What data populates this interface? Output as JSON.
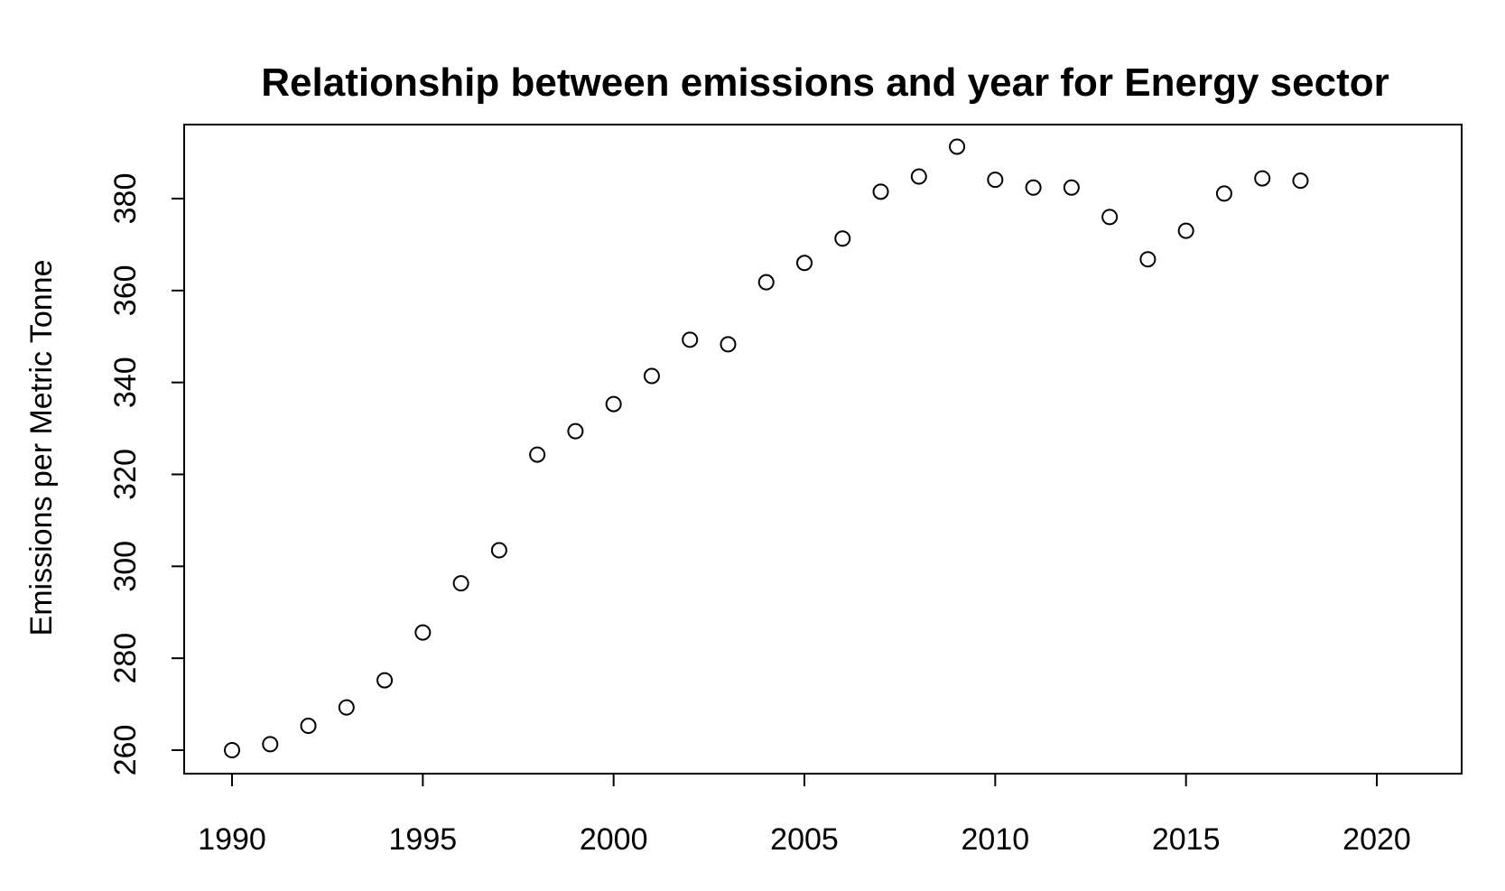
{
  "chart_data": {
    "type": "scatter",
    "title": "Relationship between emissions and year for Energy sector",
    "xlabel": "",
    "ylabel": "Emissions per Metric Tonne",
    "xlim": [
      1989,
      2022.5
    ],
    "ylim": [
      255,
      397
    ],
    "x_ticks": [
      1990,
      1995,
      2000,
      2005,
      2010,
      2015,
      2020
    ],
    "y_ticks": [
      260,
      280,
      300,
      320,
      340,
      360,
      380
    ],
    "grid": false,
    "marker": "open-circle",
    "colors": {
      "marker": "#000000",
      "axes": "#000000",
      "background": "#ffffff"
    },
    "points": [
      {
        "x": 1990,
        "y": 260.0
      },
      {
        "x": 1991,
        "y": 261.3
      },
      {
        "x": 1992,
        "y": 265.3
      },
      {
        "x": 1993,
        "y": 269.3
      },
      {
        "x": 1994,
        "y": 275.2
      },
      {
        "x": 1995,
        "y": 285.6
      },
      {
        "x": 1996,
        "y": 296.3
      },
      {
        "x": 1997,
        "y": 303.5
      },
      {
        "x": 1998,
        "y": 324.3
      },
      {
        "x": 1999,
        "y": 329.4
      },
      {
        "x": 2000,
        "y": 335.3
      },
      {
        "x": 2001,
        "y": 341.4
      },
      {
        "x": 2002,
        "y": 349.3
      },
      {
        "x": 2003,
        "y": 348.3
      },
      {
        "x": 2004,
        "y": 361.8
      },
      {
        "x": 2005,
        "y": 366.0
      },
      {
        "x": 2006,
        "y": 371.3
      },
      {
        "x": 2007,
        "y": 381.5
      },
      {
        "x": 2008,
        "y": 384.8
      },
      {
        "x": 2009,
        "y": 391.3
      },
      {
        "x": 2010,
        "y": 384.1
      },
      {
        "x": 2011,
        "y": 382.4
      },
      {
        "x": 2012,
        "y": 382.4
      },
      {
        "x": 2013,
        "y": 376.0
      },
      {
        "x": 2014,
        "y": 366.8
      },
      {
        "x": 2015,
        "y": 373.0
      },
      {
        "x": 2016,
        "y": 381.1
      },
      {
        "x": 2017,
        "y": 384.4
      },
      {
        "x": 2018,
        "y": 383.9
      }
    ]
  }
}
